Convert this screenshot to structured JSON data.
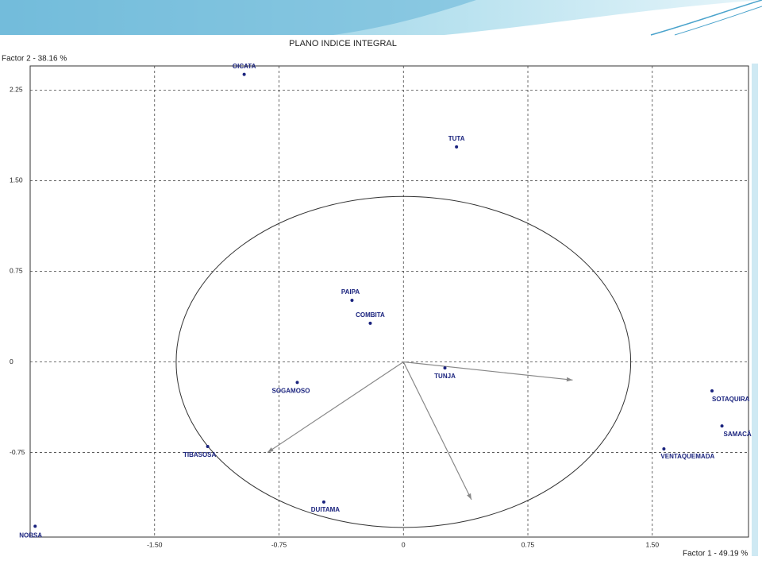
{
  "chart_data": {
    "type": "scatter",
    "title": "PLANO INDICE INTEGRAL",
    "x_label": "Factor 1  -  49.19 %",
    "y_label": "Factor 2  -  38.16 %",
    "labels": [
      "OICATA",
      "TUTA",
      "PAIPA",
      "COMBITA",
      "SOGAMOSO",
      "TUNJA",
      "TIBASOSA",
      "DUITAMA",
      "NOBSA",
      "VENTAQUEMADA",
      "SOTAQUIRA",
      "SAMACÁ"
    ],
    "x": [
      -0.96,
      0.32,
      -0.31,
      -0.2,
      -0.64,
      0.25,
      -1.18,
      -0.48,
      -2.22,
      1.57,
      1.86,
      1.92
    ],
    "y": [
      2.38,
      1.78,
      0.51,
      0.32,
      -0.17,
      -0.05,
      -0.7,
      -1.16,
      -1.36,
      -0.72,
      -0.24,
      -0.53
    ],
    "color": "#1a237e",
    "vectors": {
      "x": [
        1.02,
        -0.82,
        0.41
      ],
      "y": [
        -0.15,
        -0.75,
        -1.14
      ],
      "color": "#888888"
    },
    "circle_radius": 1.37,
    "xlim": [
      -2.25,
      2.08
    ],
    "ylim": [
      -1.45,
      2.45
    ],
    "xticks": [
      {
        "value": -1.5,
        "label": "-1.50"
      },
      -0.75,
      0,
      0.75,
      {
        "value": 1.5,
        "label": "1.50"
      }
    ],
    "yticks": [
      -0.75,
      0,
      0.75,
      {
        "value": 1.5,
        "label": "1.50"
      },
      2.25
    ],
    "grid": true
  }
}
